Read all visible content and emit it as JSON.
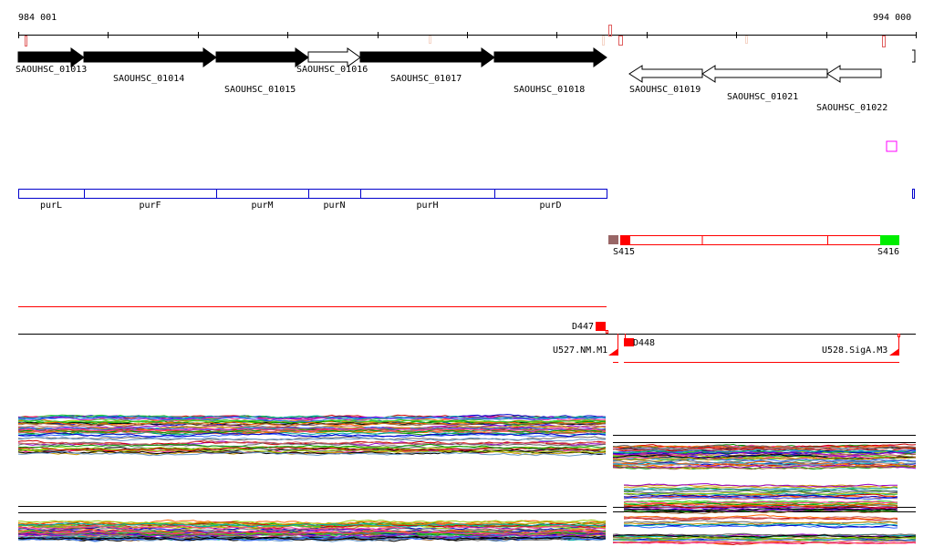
{
  "ruler": {
    "start_label": "984 001",
    "end_label": "994 000"
  },
  "genes": [
    {
      "id": "SAOUHSC_01013",
      "strand": "+",
      "fill": "#000000"
    },
    {
      "id": "SAOUHSC_01014",
      "strand": "+",
      "fill": "#000000"
    },
    {
      "id": "SAOUHSC_01015",
      "strand": "+",
      "fill": "#000000"
    },
    {
      "id": "SAOUHSC_01016",
      "strand": "+",
      "fill": "#ffffff"
    },
    {
      "id": "SAOUHSC_01017",
      "strand": "+",
      "fill": "#000000"
    },
    {
      "id": "SAOUHSC_01018",
      "strand": "+",
      "fill": "#000000"
    },
    {
      "id": "SAOUHSC_01019",
      "strand": "-",
      "fill": "#ffffff"
    },
    {
      "id": "SAOUHSC_01021",
      "strand": "-",
      "fill": "#ffffff"
    },
    {
      "id": "SAOUHSC_01022",
      "strand": "-",
      "fill": "#ffffff"
    }
  ],
  "operon_genes": [
    "purL",
    "purF",
    "purM",
    "purN",
    "purH",
    "purD"
  ],
  "segments": {
    "left": "S415",
    "right": "S416"
  },
  "features": {
    "d447": "D447",
    "d448": "D448",
    "u527": "U527.NM.M1",
    "u528": "U528.SigA.M3"
  },
  "colors": {
    "operon": "#0000cc",
    "segment": "#ff0000",
    "segment_start": "#996666",
    "segment_end": "#00ee00",
    "marker": "#ff00ff"
  },
  "profile_palette": [
    "#cc0000",
    "#009900",
    "#0000cc",
    "#cc9900",
    "#9900cc",
    "#00aaaa",
    "#ff6600",
    "#666666",
    "#996633",
    "#33cc33",
    "#3366ff",
    "#ff3399",
    "#000000",
    "#99cc00",
    "#cc6666",
    "#6699cc"
  ]
}
